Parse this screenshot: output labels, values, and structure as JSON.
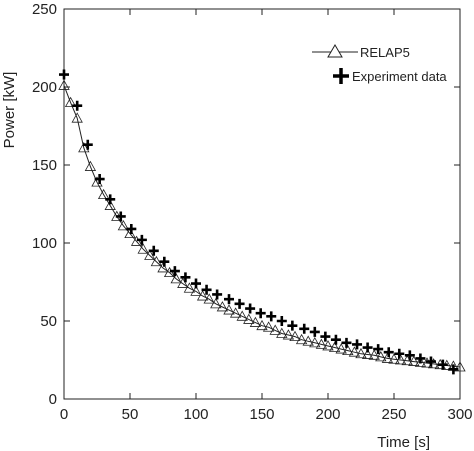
{
  "chart_data": {
    "type": "line",
    "title": "",
    "xlabel": "Time [s]",
    "ylabel": "Power [kW]",
    "xlim": [
      0,
      300
    ],
    "ylim": [
      0,
      250
    ],
    "xticks": [
      0,
      50,
      100,
      150,
      200,
      250,
      300
    ],
    "yticks": [
      0,
      50,
      100,
      150,
      200,
      250
    ],
    "grid": false,
    "legend_position": "top-right",
    "series": [
      {
        "name": "RELAP5",
        "marker": "triangle-open",
        "line": "solid",
        "color": "#222222",
        "x": [
          0,
          5,
          10,
          15,
          20,
          25,
          30,
          35,
          40,
          45,
          50,
          55,
          60,
          65,
          70,
          75,
          80,
          85,
          90,
          95,
          100,
          105,
          110,
          115,
          120,
          125,
          130,
          135,
          140,
          145,
          150,
          155,
          160,
          165,
          170,
          175,
          180,
          185,
          190,
          195,
          200,
          205,
          210,
          215,
          220,
          225,
          230,
          235,
          240,
          245,
          250,
          255,
          260,
          265,
          270,
          275,
          280,
          285,
          290,
          295,
          300
        ],
        "y": [
          201,
          190,
          180,
          161,
          149,
          139,
          131,
          124,
          117,
          111,
          106,
          101,
          96,
          92,
          88,
          84,
          81,
          77,
          74,
          71,
          69,
          66,
          64,
          61,
          59,
          57,
          55,
          53,
          51,
          49,
          47,
          46,
          44,
          42,
          41,
          40,
          38,
          37,
          36,
          35,
          34,
          33,
          32,
          31,
          30,
          29,
          28.5,
          28,
          27,
          26,
          25.5,
          25,
          24.5,
          24,
          23.5,
          23,
          22.5,
          22,
          21.5,
          21,
          20.5
        ]
      },
      {
        "name": "Experiment data",
        "marker": "plus-bold",
        "line": "none",
        "color": "#000000",
        "x": [
          0,
          10,
          18,
          27,
          35,
          43,
          51,
          59,
          68,
          76,
          84,
          92,
          100,
          108,
          116,
          125,
          133,
          141,
          149,
          157,
          165,
          173,
          182,
          190,
          198,
          206,
          214,
          222,
          230,
          238,
          246,
          254,
          262,
          270,
          278,
          287,
          295
        ],
        "y": [
          208,
          188,
          163,
          141,
          128,
          117,
          109,
          102,
          95,
          88,
          82,
          78,
          74,
          70,
          67,
          64,
          61,
          58,
          55,
          53,
          50,
          47,
          45,
          43,
          40,
          38,
          36,
          35,
          33,
          32,
          30,
          29,
          28,
          26,
          24,
          22,
          19
        ]
      }
    ]
  }
}
